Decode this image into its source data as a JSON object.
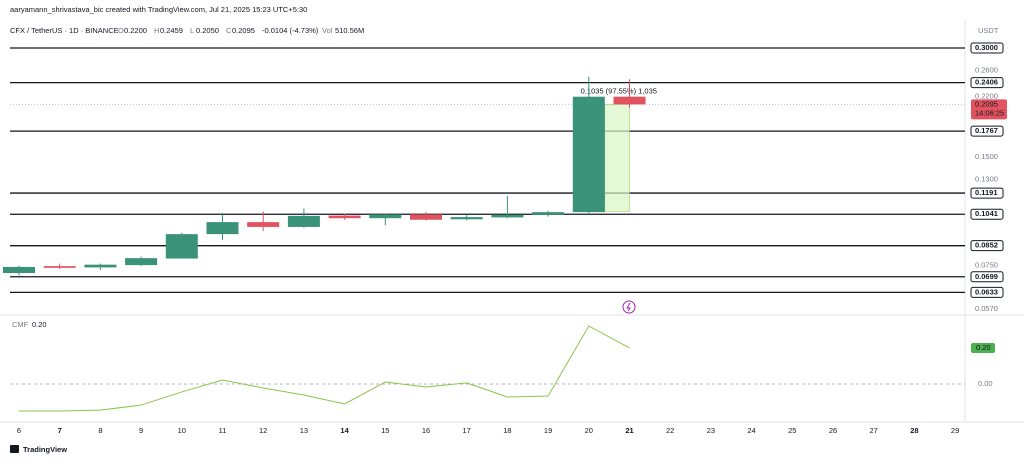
{
  "header": {
    "credit": "aaryamann_shrivastava_bic created with TradingView.com, Jul 21, 2025 15:23 UTC+5:30",
    "symbol": "CFX / TetherUS · 1D · BINANCE",
    "legend": [
      {
        "key": "O",
        "text": "0.2200"
      },
      {
        "key": "H",
        "text": "0.2459"
      },
      {
        "key": "L",
        "text": "0.2050"
      },
      {
        "key": "C",
        "text": "0.2095"
      }
    ],
    "change": "-0.0104 (-4.73%)",
    "volume_key": "Vol",
    "volume": "510.56M"
  },
  "footer": {
    "brand": "TradingView"
  },
  "chart_data": [
    {
      "type": "candlestick",
      "unit": "USDT",
      "log_scale": true,
      "up_color": "#3a9278",
      "down_color": "#e0535f",
      "categories": [
        "6",
        "7",
        "8",
        "9",
        "10",
        "11",
        "12",
        "13",
        "14",
        "15",
        "16",
        "17",
        "18",
        "19",
        "20",
        "21",
        "22",
        "23",
        "24",
        "25",
        "26",
        "27",
        "28",
        "29"
      ],
      "open": [
        0.0716,
        0.0748,
        0.0742,
        0.0753,
        0.0785,
        0.0917,
        0.099,
        0.096,
        0.1032,
        0.1015,
        0.104,
        0.1008,
        0.102,
        0.1037,
        0.1055,
        0.22,
        null,
        null,
        null,
        null,
        null,
        null,
        null,
        null
      ],
      "high": [
        0.075,
        0.076,
        0.076,
        0.0795,
        0.0925,
        0.105,
        0.106,
        0.108,
        0.1045,
        0.1045,
        0.1055,
        0.1035,
        0.117,
        0.1065,
        0.25,
        0.2459,
        null,
        null,
        null,
        null,
        null,
        null,
        null,
        null
      ],
      "low": [
        0.0705,
        0.0735,
        0.073,
        0.0748,
        0.0785,
        0.0883,
        0.0935,
        0.0955,
        0.1005,
        0.097,
        0.1,
        0.1,
        0.1015,
        0.1025,
        0.1041,
        0.205,
        null,
        null,
        null,
        null,
        null,
        null,
        null,
        null
      ],
      "close": [
        0.0744,
        0.074,
        0.0755,
        0.0787,
        0.0917,
        0.099,
        0.096,
        0.103,
        0.1015,
        0.104,
        0.1005,
        0.1022,
        0.1037,
        0.1055,
        0.22,
        0.2095,
        null,
        null,
        null,
        null,
        null,
        null,
        null,
        null
      ],
      "ylim": [
        0.0548,
        0.3585
      ],
      "yticks": [
        {
          "value": 0.26,
          "label": "0.2600"
        },
        {
          "value": 0.22,
          "label": "0.2200"
        },
        {
          "value": 0.15,
          "label": "0.1500"
        },
        {
          "value": 0.13,
          "label": "0.1300"
        },
        {
          "value": 0.075,
          "label": "0.0750"
        },
        {
          "value": 0.057,
          "label": "0.0570"
        }
      ],
      "levels": [
        {
          "value": 0.3,
          "label": "0.3000"
        },
        {
          "value": 0.2406,
          "label": "0.2406"
        },
        {
          "value": 0.1767,
          "label": "0.1767"
        },
        {
          "value": 0.1191,
          "label": "0.1191"
        },
        {
          "value": 0.1041,
          "label": "0.1041"
        },
        {
          "value": 0.0852,
          "label": "0.0852"
        },
        {
          "value": 0.0699,
          "label": "0.0699"
        },
        {
          "value": 0.0633,
          "label": "0.0633"
        }
      ],
      "last_price": {
        "value": 0.2095,
        "label": "0.2095",
        "countdown": "14:06:25"
      },
      "measure": {
        "start": 0.106,
        "end": 0.2095,
        "label": "0.1035 (97.55%) 1,035"
      }
    },
    {
      "type": "line",
      "name": "CMF",
      "color": "#8bc34a",
      "values": [
        -0.15,
        -0.15,
        -0.145,
        -0.117,
        -0.044,
        0.022,
        -0.022,
        -0.061,
        -0.111,
        0.011,
        -0.017,
        0.006,
        -0.072,
        -0.067,
        0.322,
        0.2,
        null,
        null,
        null,
        null,
        null,
        null,
        null,
        null
      ],
      "value_label": "0.20",
      "ylim": [
        -0.211,
        0.383
      ],
      "yticks": [
        {
          "value": 0,
          "label": "0.00"
        }
      ]
    }
  ]
}
